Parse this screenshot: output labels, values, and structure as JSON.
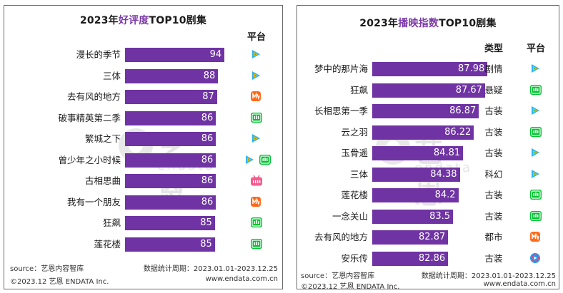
{
  "colors": {
    "bar": "#6f33a3",
    "title_highlight": "#7b3aa8",
    "tencent": "#2eb5f0",
    "iqiyi": "#00c330",
    "mango": "#ff6a1a",
    "bilibili": "#f25d8e",
    "youku": "#1e9cf0"
  },
  "watermark": {
    "cn": "艺恩",
    "en": "endata"
  },
  "chart_data": [
    {
      "type": "bar",
      "title_prefix": "2023年",
      "title_highlight": "好评度",
      "title_suffix": "TOP10剧集",
      "platform_header": "平台",
      "categories": [
        "漫长的季节",
        "三体",
        "去有风的地方",
        "破事精英第二季",
        "繁城之下",
        "曾少年之小时候",
        "古相思曲",
        "我有一个朋友",
        "狂飙",
        "莲花楼"
      ],
      "values": [
        94,
        88,
        87,
        86,
        86,
        86,
        86,
        86,
        85,
        85
      ],
      "xlim": [
        0,
        100
      ],
      "platforms": [
        [
          "tencent"
        ],
        [
          "tencent"
        ],
        [
          "mango"
        ],
        [
          "iqiyi"
        ],
        [
          "tencent"
        ],
        [
          "tencent",
          "iqiyi"
        ],
        [
          "bilibili"
        ],
        [
          "mango"
        ],
        [
          "iqiyi"
        ],
        [
          "iqiyi"
        ]
      ],
      "footer": {
        "source": "source：艺恩内容智库",
        "period": "数据统计周期：2023.01.01-2023.12.25",
        "copyright": "©2023.12 艺恩 ENDATA Inc.",
        "site": "www.endata.com.cn"
      }
    },
    {
      "type": "bar",
      "title_prefix": "2023年",
      "title_highlight": "播映指数",
      "title_suffix": "TOP10剧集",
      "genre_header": "类型",
      "platform_header": "平台",
      "categories": [
        "梦中的那片海",
        "狂飙",
        "长相思第一季",
        "云之羽",
        "玉骨遥",
        "三体",
        "莲花楼",
        "一念关山",
        "去有风的地方",
        "安乐传"
      ],
      "values": [
        87.98,
        87.67,
        86.87,
        86.22,
        84.81,
        84.38,
        84.2,
        83.5,
        82.87,
        82.86
      ],
      "value_labels": [
        "87.98",
        "87.67",
        "86.87",
        "86.22",
        "84.81",
        "84.38",
        "84.2",
        "83.5",
        "82.87",
        "82.86"
      ],
      "xlim": [
        73,
        90
      ],
      "genres": [
        "剧情",
        "悬疑",
        "古装",
        "古装",
        "古装",
        "科幻",
        "古装",
        "古装",
        "都市",
        "古装"
      ],
      "platforms": [
        [
          "tencent"
        ],
        [
          "iqiyi"
        ],
        [
          "tencent"
        ],
        [
          "iqiyi"
        ],
        [
          "tencent"
        ],
        [
          "tencent"
        ],
        [
          "iqiyi"
        ],
        [
          "iqiyi"
        ],
        [
          "mango"
        ],
        [
          "youku"
        ]
      ],
      "footer": {
        "source": "source：艺恩内容智库",
        "period": "数据统计周期：2023.01.01-2023.12.25",
        "copyright": "©2023.12 艺恩 ENDATA Inc.",
        "site": "www.endata.com.cn"
      }
    }
  ]
}
